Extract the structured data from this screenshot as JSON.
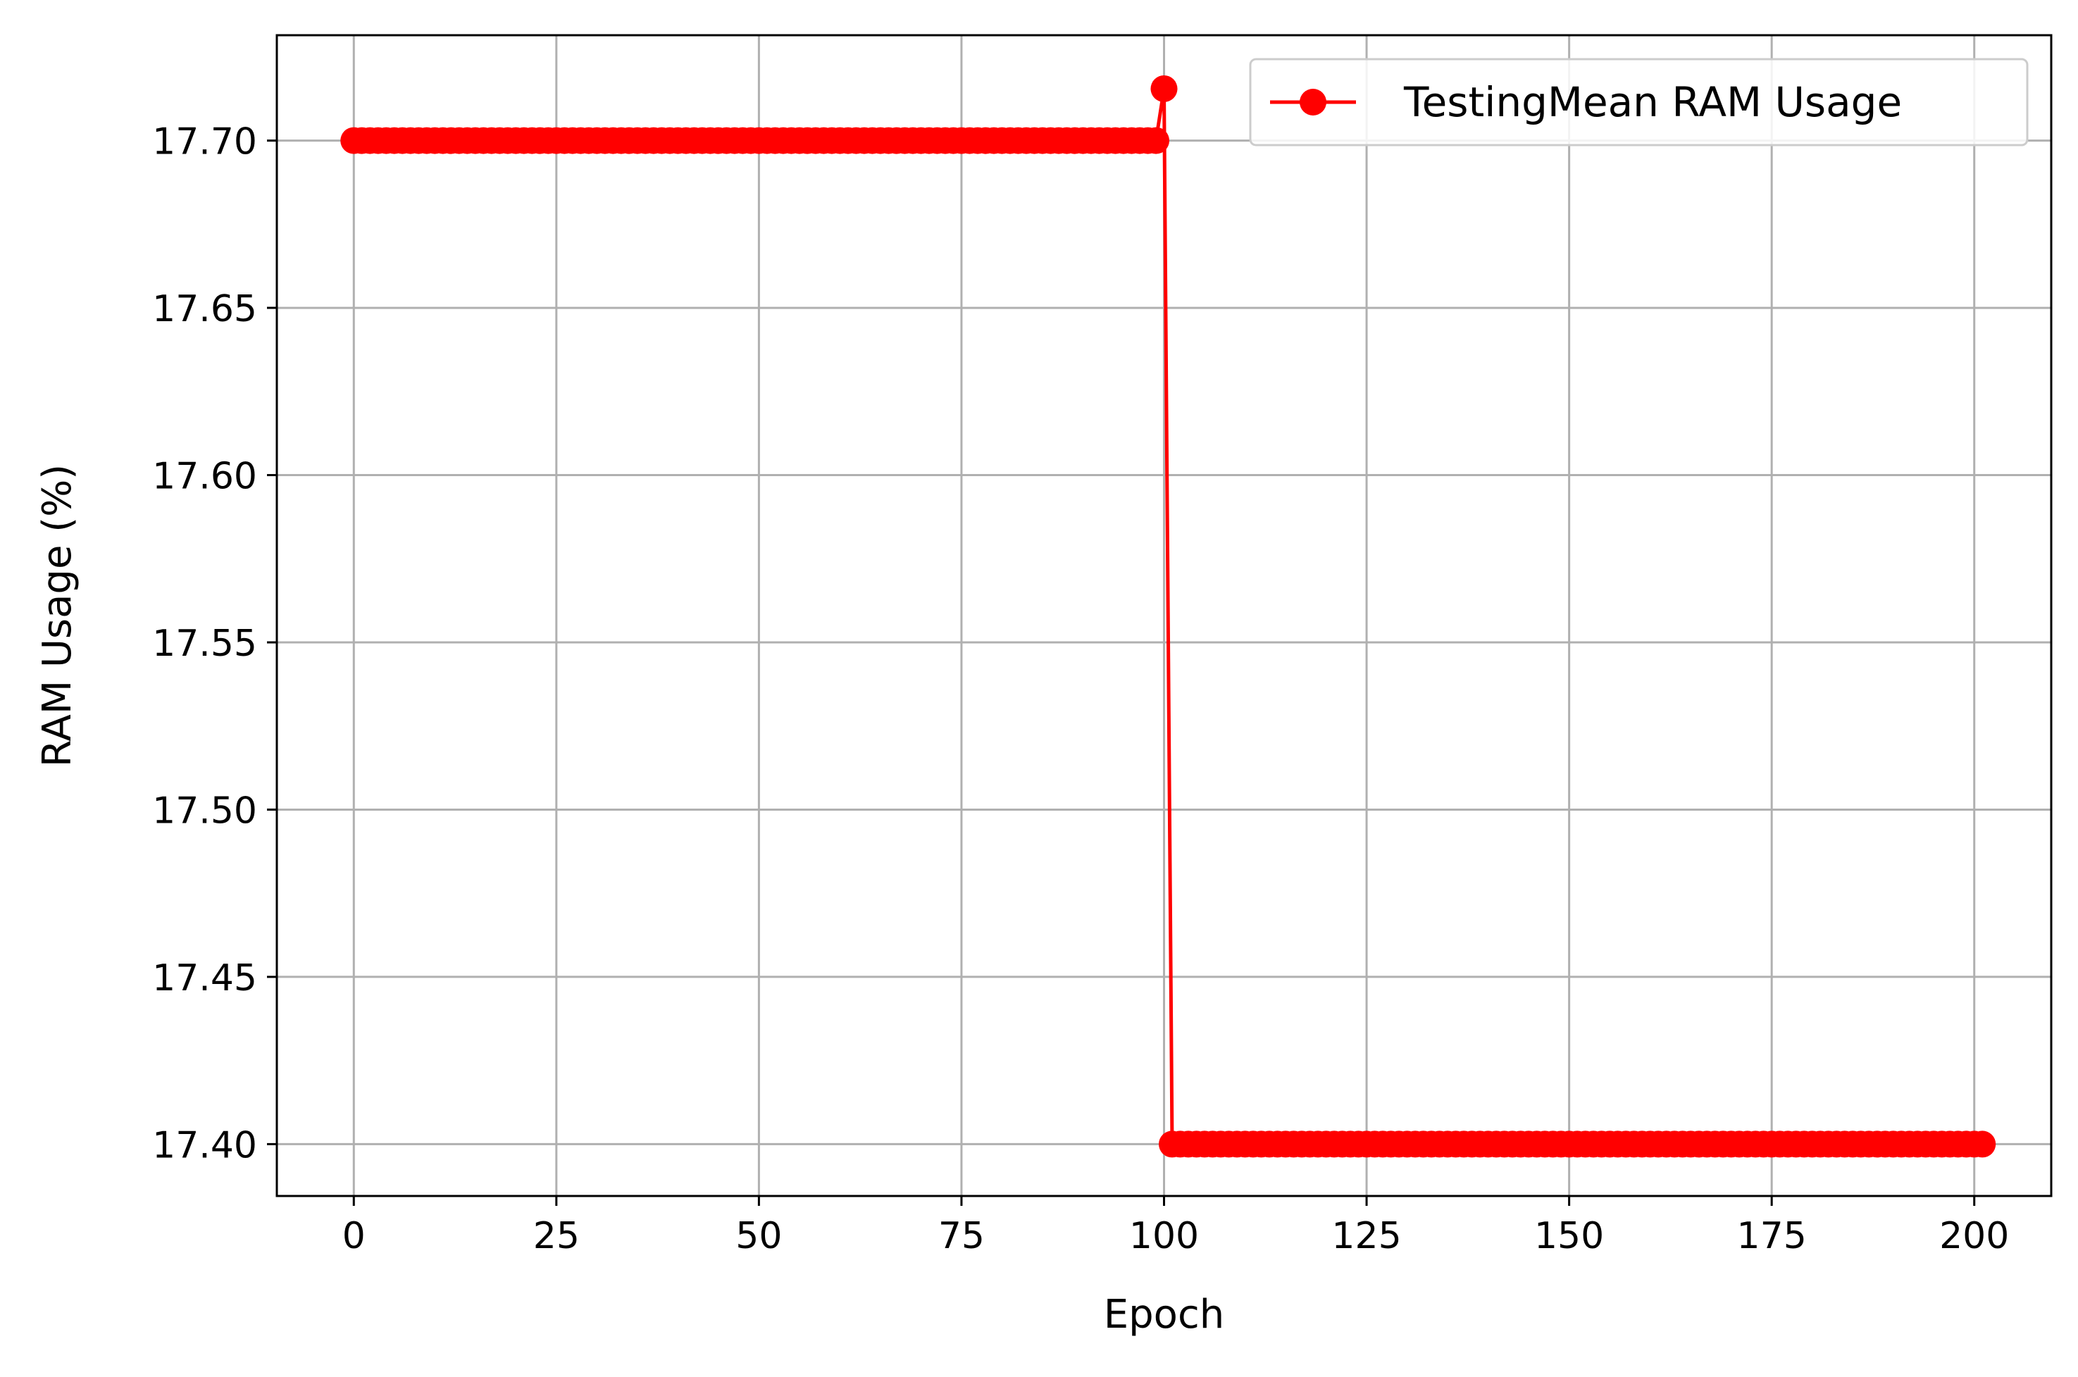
{
  "chart_data": {
    "type": "line",
    "title": "",
    "xlabel": "Epoch",
    "ylabel": "RAM Usage (%)",
    "xlim": [
      -9.5,
      209.5
    ],
    "ylim": [
      17.3845,
      17.7315
    ],
    "xticks": [
      0,
      25,
      50,
      75,
      100,
      125,
      150,
      175,
      200
    ],
    "yticks": [
      17.4,
      17.45,
      17.5,
      17.55,
      17.6,
      17.65,
      17.7
    ],
    "xtick_labels": [
      "0",
      "25",
      "50",
      "75",
      "100",
      "125",
      "150",
      "175",
      "200"
    ],
    "ytick_labels": [
      "17.40",
      "17.45",
      "17.50",
      "17.55",
      "17.60",
      "17.65",
      "17.70"
    ],
    "grid": true,
    "legend_position": "top-right",
    "series": [
      {
        "name": "TestingMean RAM Usage",
        "color": "#ff0000",
        "marker": "circle",
        "segments": [
          {
            "x_from": 0,
            "x_to": 99,
            "y": 17.7
          },
          {
            "x_from": 100,
            "x_to": 100,
            "y": 17.7155
          },
          {
            "x_from": 101,
            "x_to": 201,
            "y": 17.4
          }
        ]
      }
    ]
  }
}
